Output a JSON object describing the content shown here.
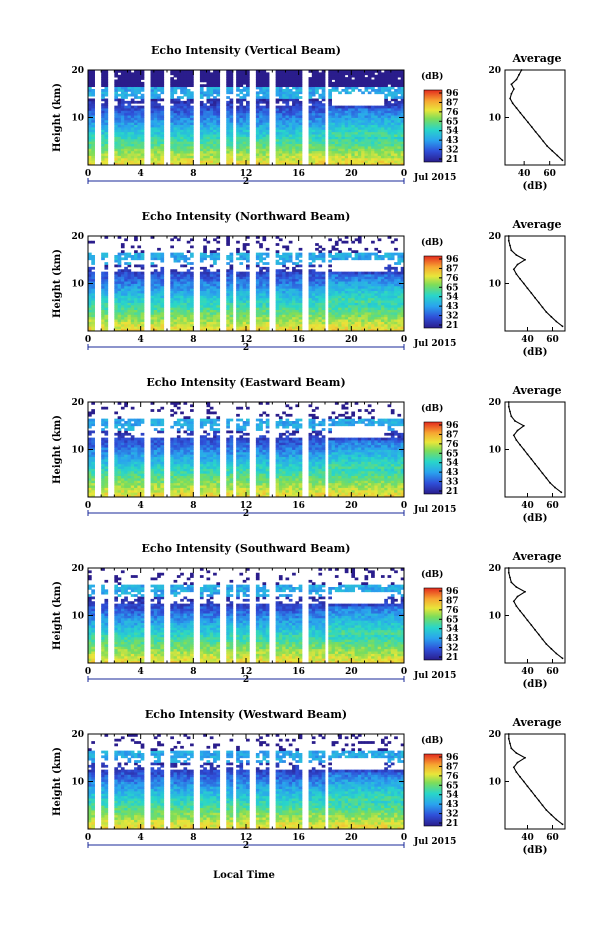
{
  "figure": {
    "x_axis_label": "Local Time",
    "date_label": "Jul 2015",
    "day_marker": "2",
    "cbar_unit": "(dB)",
    "avg_title": "Average",
    "avg_xlabel": "(dB)",
    "y_axis_label": "Height (km)"
  },
  "chart_data": [
    {
      "type": "heatmap",
      "title": "Echo Intensity (Vertical Beam)",
      "ylabel": "Height (km)",
      "xlabel": "Local Time",
      "x_ticks": [
        "0",
        "4",
        "8",
        "12",
        "16",
        "20",
        "0"
      ],
      "y_ticks": [
        "20",
        "10"
      ],
      "xlim": [
        0,
        24
      ],
      "ylim": [
        0,
        20
      ],
      "colorbar": {
        "unit": "(dB)",
        "ticks": [
          "96",
          "87",
          "76",
          "65",
          "54",
          "43",
          "32",
          "21"
        ]
      },
      "average_profile": {
        "title": "Average",
        "xlabel": "(dB)",
        "x_ticks": [
          "40",
          "60"
        ],
        "y_ticks": [
          "20",
          "10"
        ],
        "xlim": [
          25,
          72
        ],
        "height_km": [
          1,
          2,
          3,
          4,
          5,
          6,
          7,
          8,
          9,
          10,
          11,
          12,
          13,
          14,
          15,
          16,
          17,
          18,
          19,
          20
        ],
        "db": [
          70,
          66,
          62,
          58,
          55,
          52,
          49,
          46,
          43,
          40,
          37,
          34,
          31,
          29,
          30,
          32,
          30,
          34,
          36,
          38
        ]
      }
    },
    {
      "type": "heatmap",
      "title": "Echo Intensity (Northward Beam)",
      "ylabel": "Height (km)",
      "xlabel": "Local Time",
      "x_ticks": [
        "0",
        "4",
        "8",
        "12",
        "16",
        "20",
        "0"
      ],
      "y_ticks": [
        "20",
        "10"
      ],
      "xlim": [
        0,
        24
      ],
      "ylim": [
        0,
        20
      ],
      "colorbar": {
        "unit": "(dB)",
        "ticks": [
          "96",
          "87",
          "76",
          "65",
          "54",
          "43",
          "32",
          "21"
        ]
      },
      "average_profile": {
        "title": "Average",
        "xlabel": "(dB)",
        "x_ticks": [
          "40",
          "60"
        ],
        "y_ticks": [
          "20",
          "10"
        ],
        "xlim": [
          22,
          70
        ],
        "height_km": [
          1,
          2,
          3,
          4,
          5,
          6,
          7,
          8,
          9,
          10,
          11,
          12,
          13,
          14,
          15,
          16,
          17,
          18,
          19,
          20
        ],
        "db": [
          68,
          63,
          59,
          55,
          52,
          49,
          46,
          43,
          40,
          37,
          34,
          31,
          29,
          32,
          38,
          31,
          27,
          26,
          25,
          25
        ]
      }
    },
    {
      "type": "heatmap",
      "title": "Echo Intensity (Eastward Beam)",
      "ylabel": "Height (km)",
      "xlabel": "Local Time",
      "x_ticks": [
        "0",
        "4",
        "8",
        "12",
        "16",
        "20",
        "0"
      ],
      "y_ticks": [
        "20",
        "10"
      ],
      "xlim": [
        0,
        24
      ],
      "ylim": [
        0,
        20
      ],
      "colorbar": {
        "unit": "(dB)",
        "ticks": [
          "96",
          "87",
          "76",
          "65",
          "54",
          "43",
          "33",
          "21"
        ]
      },
      "average_profile": {
        "title": "Average",
        "xlabel": "(dB)",
        "x_ticks": [
          "40",
          "60"
        ],
        "y_ticks": [
          "20",
          "10"
        ],
        "xlim": [
          22,
          70
        ],
        "height_km": [
          1,
          2,
          3,
          4,
          5,
          6,
          7,
          8,
          9,
          10,
          11,
          12,
          13,
          14,
          15,
          16,
          17,
          18,
          19,
          20
        ],
        "db": [
          67,
          62,
          58,
          55,
          52,
          49,
          46,
          43,
          40,
          37,
          34,
          31,
          29,
          32,
          37,
          30,
          27,
          26,
          25,
          25
        ]
      }
    },
    {
      "type": "heatmap",
      "title": "Echo Intensity (Southward Beam)",
      "ylabel": "Height (km)",
      "xlabel": "Local Time",
      "x_ticks": [
        "0",
        "4",
        "8",
        "12",
        "16",
        "20",
        "0"
      ],
      "y_ticks": [
        "20",
        "10"
      ],
      "xlim": [
        0,
        24
      ],
      "ylim": [
        0,
        20
      ],
      "colorbar": {
        "unit": "(dB)",
        "ticks": [
          "96",
          "87",
          "76",
          "65",
          "54",
          "43",
          "32",
          "21"
        ]
      },
      "average_profile": {
        "title": "Average",
        "xlabel": "(dB)",
        "x_ticks": [
          "40",
          "60"
        ],
        "y_ticks": [
          "20",
          "10"
        ],
        "xlim": [
          22,
          70
        ],
        "height_km": [
          1,
          2,
          3,
          4,
          5,
          6,
          7,
          8,
          9,
          10,
          11,
          12,
          13,
          14,
          15,
          16,
          17,
          18,
          19,
          20
        ],
        "db": [
          68,
          63,
          59,
          55,
          52,
          49,
          46,
          43,
          40,
          37,
          34,
          31,
          29,
          32,
          38,
          31,
          27,
          26,
          25,
          25
        ]
      }
    },
    {
      "type": "heatmap",
      "title": "Echo Intensity (Westward Beam)",
      "ylabel": "Height (km)",
      "xlabel": "Local Time",
      "x_ticks": [
        "0",
        "4",
        "8",
        "12",
        "16",
        "20",
        "0"
      ],
      "y_ticks": [
        "20",
        "10"
      ],
      "xlim": [
        0,
        24
      ],
      "ylim": [
        0,
        20
      ],
      "colorbar": {
        "unit": "(dB)",
        "ticks": [
          "96",
          "87",
          "76",
          "65",
          "54",
          "43",
          "32",
          "21"
        ]
      },
      "average_profile": {
        "title": "Average",
        "xlabel": "(dB)",
        "x_ticks": [
          "40",
          "60"
        ],
        "y_ticks": [
          "20",
          "10"
        ],
        "xlim": [
          22,
          70
        ],
        "height_km": [
          1,
          2,
          3,
          4,
          5,
          6,
          7,
          8,
          9,
          10,
          11,
          12,
          13,
          14,
          15,
          16,
          17,
          18,
          19,
          20
        ],
        "db": [
          68,
          63,
          59,
          55,
          52,
          49,
          46,
          43,
          40,
          37,
          34,
          31,
          29,
          32,
          38,
          31,
          27,
          26,
          25,
          25
        ]
      }
    }
  ]
}
